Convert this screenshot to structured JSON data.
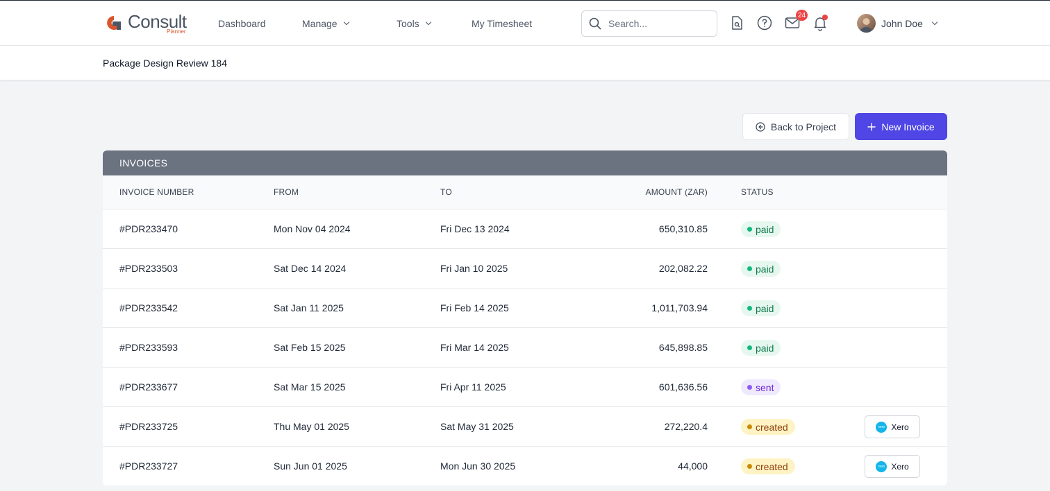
{
  "app": {
    "logo_text": "Consult",
    "logo_sub": "Planner"
  },
  "nav": {
    "dashboard": "Dashboard",
    "manage": "Manage",
    "tools": "Tools",
    "timesheet": "My Timesheet"
  },
  "search": {
    "placeholder": "Search..."
  },
  "notifications": {
    "mail_count": "24"
  },
  "user": {
    "name": "John Doe"
  },
  "project": {
    "title": "Package Design Review 184"
  },
  "actions": {
    "back_label": "Back to Project",
    "new_label": "New Invoice"
  },
  "invoices": {
    "heading": "INVOICES",
    "columns": {
      "number": "INVOICE NUMBER",
      "from": "FROM",
      "to": "TO",
      "amount": "AMOUNT (ZAR)",
      "status": "STATUS"
    },
    "rows": [
      {
        "number": "#PDR233470",
        "from": "Mon Nov 04 2024",
        "to": "Fri Dec 13 2024",
        "amount": "650,310.85",
        "status": "paid",
        "xero": ""
      },
      {
        "number": "#PDR233503",
        "from": "Sat Dec 14 2024",
        "to": "Fri Jan 10 2025",
        "amount": "202,082.22",
        "status": "paid",
        "xero": ""
      },
      {
        "number": "#PDR233542",
        "from": "Sat Jan 11 2025",
        "to": "Fri Feb 14 2025",
        "amount": "1,011,703.94",
        "status": "paid",
        "xero": ""
      },
      {
        "number": "#PDR233593",
        "from": "Sat Feb 15 2025",
        "to": "Fri Mar 14 2025",
        "amount": "645,898.85",
        "status": "paid",
        "xero": ""
      },
      {
        "number": "#PDR233677",
        "from": "Sat Mar 15 2025",
        "to": "Fri Apr 11 2025",
        "amount": "601,636.56",
        "status": "sent",
        "xero": ""
      },
      {
        "number": "#PDR233725",
        "from": "Thu May 01 2025",
        "to": "Sat May 31 2025",
        "amount": "272,220.4",
        "status": "created",
        "xero": "Xero"
      },
      {
        "number": "#PDR233727",
        "from": "Sun Jun 01 2025",
        "to": "Mon Jun 30 2025",
        "amount": "44,000",
        "status": "created",
        "xero": "Xero"
      }
    ]
  },
  "colors": {
    "accent": "#4f46e5",
    "paid_bg": "#e6f7ef",
    "paid_fg": "#0f7a4d",
    "paid_dot": "#10b981",
    "sent_bg": "#efe9fd",
    "sent_fg": "#6d28d9",
    "sent_dot": "#8b5cf6",
    "created_bg": "#fdf3c4",
    "created_fg": "#92400e",
    "created_dot": "#ca8a04"
  }
}
